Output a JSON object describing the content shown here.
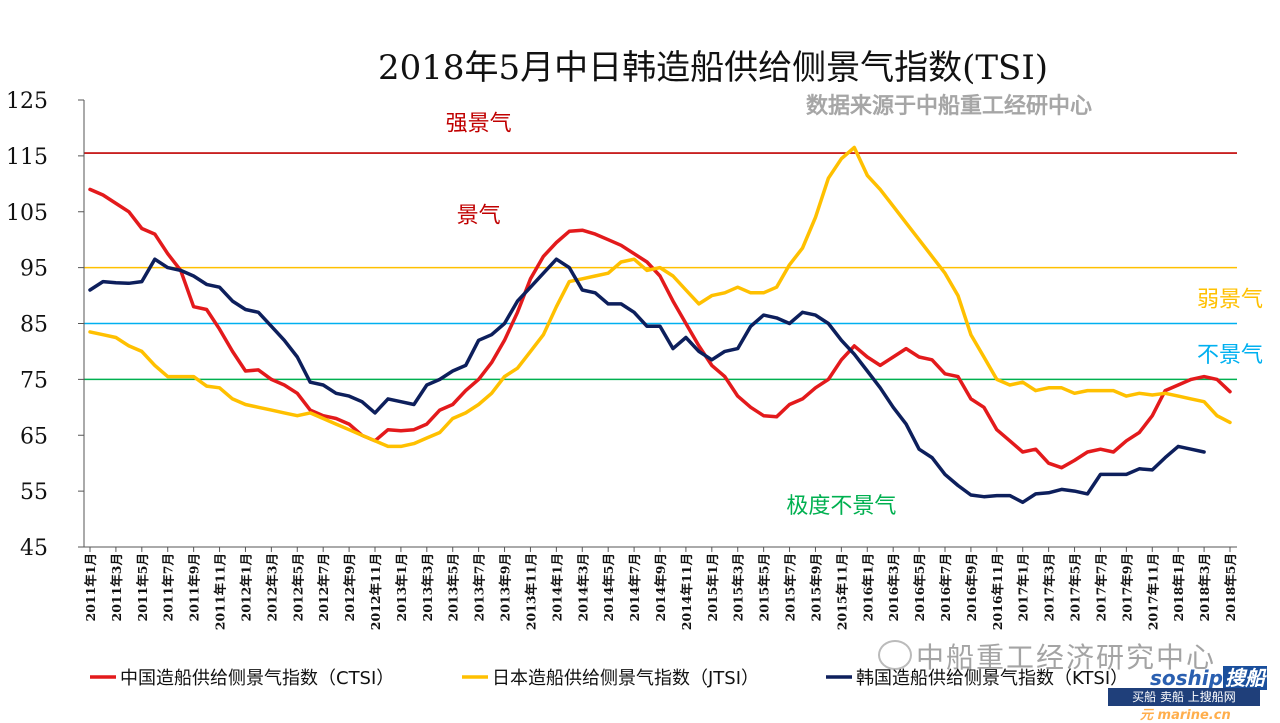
{
  "chart_data": {
    "type": "line",
    "title": "2018年5月中日韩造船供给侧景气指数(TSI)",
    "source": "数据来源于中船重工经研中心",
    "ylim": [
      45,
      125
    ],
    "yticks": [
      45,
      55,
      65,
      75,
      85,
      95,
      105,
      115,
      125
    ],
    "x_tick_labels": [
      "2011年1月",
      "2011年3月",
      "2011年5月",
      "2011年7月",
      "2011年9月",
      "2011年11月",
      "2012年1月",
      "2012年3月",
      "2012年5月",
      "2012年7月",
      "2012年9月",
      "2012年11月",
      "2013年1月",
      "2013年3月",
      "2013年5月",
      "2013年7月",
      "2013年9月",
      "2013年11月",
      "2014年1月",
      "2014年3月",
      "2014年5月",
      "2014年7月",
      "2014年9月",
      "2014年11月",
      "2015年1月",
      "2015年3月",
      "2015年5月",
      "2015年7月",
      "2015年9月",
      "2015年11月",
      "2016年1月",
      "2016年3月",
      "2016年5月",
      "2016年7月",
      "2016年9月",
      "2016年11月",
      "2017年1月",
      "2017年3月",
      "2017年5月",
      "2017年7月",
      "2017年9月",
      "2017年11月",
      "2018年1月",
      "2018年3月",
      "2018年5月"
    ],
    "thresholds": [
      {
        "value": 115.5,
        "color": "#c00000"
      },
      {
        "value": 95,
        "color": "#ffc000"
      },
      {
        "value": 85,
        "color": "#00b0f0"
      },
      {
        "value": 75,
        "color": "#00b050"
      }
    ],
    "zones": [
      {
        "label": "强景气",
        "y": 121,
        "x_index": 30,
        "color": "#c00000"
      },
      {
        "label": "景气",
        "y": 104.5,
        "x_index": 30,
        "color": "#c00000"
      },
      {
        "label": "弱景气",
        "y": 89.5,
        "x_index": 88,
        "color": "#ffc000"
      },
      {
        "label": "不景气",
        "y": 79.5,
        "x_index": 88,
        "color": "#00b0f0"
      },
      {
        "label": "极度不景气",
        "y": 52.5,
        "x_index": 58,
        "color": "#00b050"
      }
    ],
    "series": [
      {
        "name": "中国造船供给侧景气指数（CTSI）",
        "color": "#e31a1c",
        "values": [
          109,
          108,
          106.5,
          105,
          102,
          101,
          97.5,
          94.5,
          88,
          87.5,
          84,
          80,
          76.5,
          76.7,
          75,
          74,
          72.5,
          69.5,
          68.5,
          68,
          67,
          65,
          64,
          66,
          65.8,
          66,
          67,
          69.5,
          70.5,
          73,
          75,
          78,
          82,
          87,
          93,
          97,
          99.5,
          101.5,
          101.7,
          101,
          100,
          99,
          97.5,
          96,
          93.5,
          89,
          85,
          81,
          77.5,
          75.5,
          72,
          70,
          68.5,
          68.3,
          70.5,
          71.5,
          73.5,
          75,
          78.5,
          81,
          79,
          77.5,
          79,
          80.5,
          79,
          78.5,
          76,
          75.5,
          71.5,
          70,
          66,
          64,
          62,
          62.5,
          60,
          59.2,
          60.5,
          62,
          62.5,
          62,
          64,
          65.5,
          68.5,
          73,
          74,
          75,
          75.5,
          75,
          72.8
        ]
      },
      {
        "name": "日本造船供给侧景气指数（JTSI）",
        "color": "#ffc000",
        "values": [
          83.5,
          83,
          82.5,
          81,
          80,
          77.5,
          75.5,
          75.5,
          75.5,
          73.8,
          73.5,
          71.5,
          70.5,
          70,
          69.5,
          69,
          68.5,
          69,
          68,
          67,
          66,
          65,
          64,
          63,
          63,
          63.5,
          64.5,
          65.5,
          68,
          69,
          70.5,
          72.5,
          75.5,
          77,
          80,
          83,
          88,
          92.5,
          93,
          93.5,
          94,
          96,
          96.5,
          94.5,
          95,
          93.5,
          91,
          88.5,
          90,
          90.5,
          91.5,
          90.5,
          90.5,
          91.5,
          95.5,
          98.5,
          104,
          111,
          114.5,
          116.5,
          111.5,
          109,
          106,
          103,
          100,
          97,
          94,
          90,
          83,
          79,
          75,
          74,
          74.5,
          73,
          73.5,
          73.5,
          72.5,
          73,
          73,
          73,
          72,
          72.5,
          72.2,
          72.5,
          72,
          71.5,
          71,
          68.5,
          67.3
        ]
      },
      {
        "name": "韩国造船供给侧景气指数（KTSI）",
        "color": "#0d1f5c",
        "values": [
          91,
          92.5,
          92.3,
          92.2,
          92.5,
          96.5,
          95,
          94.5,
          93.5,
          92,
          91.5,
          89,
          87.5,
          87,
          84.5,
          82,
          79,
          74.5,
          74,
          72.5,
          72,
          71,
          69,
          71.5,
          71,
          70.5,
          74,
          75,
          76.5,
          77.5,
          82,
          83,
          85,
          89,
          91.5,
          94,
          96.5,
          95,
          91,
          90.5,
          88.5,
          88.5,
          87,
          84.5,
          84.5,
          80.5,
          82.5,
          80,
          78.5,
          80,
          80.5,
          84.5,
          86.5,
          86,
          85,
          87,
          86.5,
          85,
          82,
          79.5,
          76.5,
          73.5,
          70,
          67,
          62.5,
          61,
          58,
          56,
          54.3,
          54,
          54.2,
          54.2,
          53,
          54.5,
          54.7,
          55.3,
          55,
          54.5,
          58,
          58,
          58,
          59,
          58.8,
          61,
          63,
          62.5,
          62
        ]
      }
    ]
  },
  "watermark": {
    "top_text": "中船重工经济研究中心",
    "brand": "soship",
    "brand_cn": "搜船",
    "banner": "买船 卖船 上搜船网",
    "site": "marine.cn",
    "site_prefix": "元"
  }
}
